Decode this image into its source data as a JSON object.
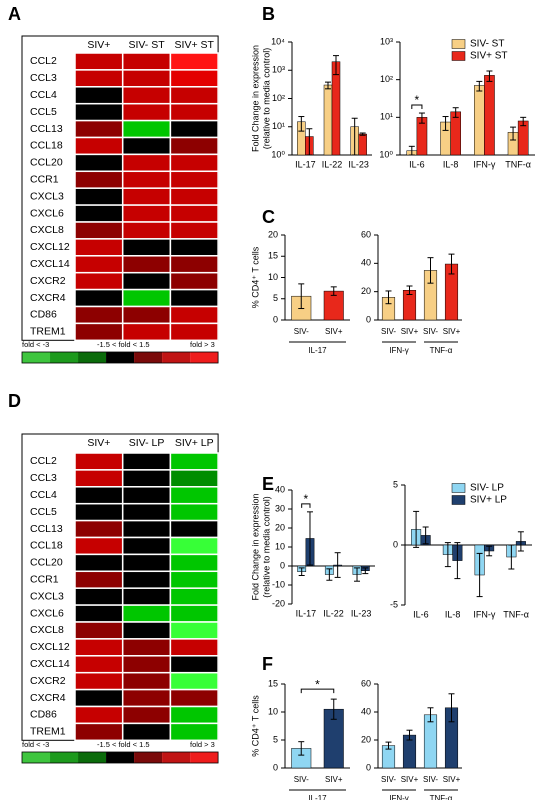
{
  "chart_data": [
    {
      "type": "heatmap",
      "panel": "A",
      "columns": [
        "SIV+",
        "SIV- ST",
        "SIV+ ST"
      ],
      "rows": [
        "CCL2",
        "CCL3",
        "CCL4",
        "CCL5",
        "CCL13",
        "CCL18",
        "CCL20",
        "CCR1",
        "CXCL3",
        "CXCL6",
        "CXCL8",
        "CXCL12",
        "CXCL14",
        "CXCR2",
        "CXCR4",
        "CD86",
        "TREM1"
      ],
      "values": [
        [
          3,
          3,
          4
        ],
        [
          3,
          3,
          3.5
        ],
        [
          0,
          3,
          3
        ],
        [
          0,
          3,
          3
        ],
        [
          2,
          -3,
          0
        ],
        [
          3,
          0,
          2
        ],
        [
          0,
          3,
          3
        ],
        [
          2,
          3,
          3
        ],
        [
          0,
          3,
          3
        ],
        [
          0,
          3,
          3
        ],
        [
          2,
          3,
          3
        ],
        [
          3,
          0,
          0
        ],
        [
          3,
          2,
          2
        ],
        [
          3,
          0,
          2
        ],
        [
          0,
          -3,
          0
        ],
        [
          2,
          2,
          3
        ],
        [
          2,
          3,
          3
        ]
      ],
      "legend_labels": [
        "fold < -3",
        "-1.5 < fold < 1.5",
        "fold > 3"
      ],
      "legend_colors": [
        "#3ec53e",
        "#1d9a1d",
        "#0b6b0b",
        "#000000",
        "#7a0a0a",
        "#c01414",
        "#ee1c1c"
      ]
    },
    {
      "type": "bar",
      "panel": "B",
      "ylabel": [
        "Fold Change in expression",
        "(relative to media control)"
      ],
      "categories": [
        "IL-17",
        "IL-22",
        "IL-23"
      ],
      "log_y": true,
      "ylim": [
        1,
        10000
      ],
      "yticks": [
        {
          "value": 1,
          "label": "10⁰"
        },
        {
          "value": 10,
          "label": "10¹"
        },
        {
          "value": 100,
          "label": "10²"
        },
        {
          "value": 1000,
          "label": "10³"
        },
        {
          "value": 10000,
          "label": "10⁴"
        }
      ],
      "series": [
        {
          "color": "#f7cf85",
          "values": [
            15,
            300,
            10
          ],
          "errors": [
            8,
            80,
            10
          ]
        },
        {
          "color": "#e8281b",
          "values": [
            4.5,
            2000,
            5.5
          ],
          "errors": [
            4,
            1300,
            0.5
          ]
        }
      ]
    },
    {
      "type": "bar",
      "categories": [
        "IL-6",
        "IL-8",
        "IFN-γ",
        "TNF-α"
      ],
      "log_y": true,
      "ylim": [
        1,
        1000
      ],
      "yticks": [
        {
          "value": 1,
          "label": "10⁰"
        },
        {
          "value": 10,
          "label": "10¹"
        },
        {
          "value": 100,
          "label": "10²"
        },
        {
          "value": 1000,
          "label": "10³"
        }
      ],
      "legend": "top-right",
      "series": [
        {
          "name": "SIV- ST",
          "color": "#f7cf85",
          "values": [
            1.3,
            7.5,
            70,
            4
          ],
          "errors": [
            0.4,
            3,
            20,
            1.5
          ]
        },
        {
          "name": "SIV+ ST",
          "color": "#e8281b",
          "values": [
            10,
            14,
            130,
            8
          ],
          "errors": [
            3,
            4,
            40,
            2
          ]
        }
      ],
      "annotations": [
        {
          "text": "*",
          "category": 0
        }
      ]
    },
    {
      "type": "bar",
      "panel": "C",
      "ylabel": [
        "% CD4⁺ T cells"
      ],
      "categories": [
        "SIV-",
        "SIV+"
      ],
      "values": [
        5.6,
        6.8
      ],
      "errors": [
        2.9,
        1
      ],
      "colors": [
        "#f7cf85",
        "#e8281b"
      ],
      "ylim": [
        0,
        20
      ],
      "yticks": [
        0,
        5,
        10,
        15,
        20
      ],
      "groups": [
        {
          "label": "IL-17",
          "categories": [
            0,
            1
          ]
        }
      ]
    },
    {
      "type": "bar",
      "categories": [
        "SIV-",
        "SIV+",
        "SIV-",
        "SIV+"
      ],
      "values": [
        16,
        21,
        35,
        39.5
      ],
      "errors": [
        4.5,
        3,
        9,
        7
      ],
      "colors": [
        "#f7cf85",
        "#e8281b",
        "#f7cf85",
        "#e8281b"
      ],
      "ylim": [
        0,
        60
      ],
      "yticks": [
        0,
        20,
        40,
        60
      ],
      "groups": [
        {
          "label": "IFN-γ",
          "categories": [
            0,
            1
          ]
        },
        {
          "label": "TNF-α",
          "categories": [
            2,
            3
          ]
        }
      ]
    },
    {
      "type": "heatmap",
      "panel": "D",
      "columns": [
        "SIV+",
        "SIV- LP",
        "SIV+ LP"
      ],
      "rows": [
        "CCL2",
        "CCL3",
        "CCL4",
        "CCL5",
        "CCL13",
        "CCL18",
        "CCL20",
        "CCR1",
        "CXCL3",
        "CXCL6",
        "CXCL8",
        "CXCL12",
        "CXCL14",
        "CXCR2",
        "CXCR4",
        "CD86",
        "TREM1"
      ],
      "values": [
        [
          3,
          0,
          -3
        ],
        [
          3,
          0,
          -2
        ],
        [
          0,
          0,
          -3
        ],
        [
          0,
          0,
          -3
        ],
        [
          2,
          0,
          0
        ],
        [
          3,
          0,
          -4
        ],
        [
          0,
          0,
          -3
        ],
        [
          2,
          0,
          -3
        ],
        [
          0,
          0,
          -3
        ],
        [
          0,
          -3,
          -3
        ],
        [
          2,
          0,
          -4
        ],
        [
          3,
          2,
          3
        ],
        [
          3,
          2,
          0
        ],
        [
          3,
          2,
          -4
        ],
        [
          0,
          2,
          2
        ],
        [
          3,
          2,
          -3
        ],
        [
          2,
          0,
          -3
        ]
      ],
      "legend_labels": [
        "fold < -3",
        "-1.5 < fold < 1.5",
        "fold > 3"
      ],
      "legend_colors": [
        "#3ec53e",
        "#1d9a1d",
        "#0b6b0b",
        "#000000",
        "#7a0a0a",
        "#c01414",
        "#ee1c1c"
      ]
    },
    {
      "type": "bar",
      "panel": "E",
      "ylabel": [
        "Fold Change in expression",
        "(relative to media control)"
      ],
      "categories": [
        "IL-17",
        "IL-22",
        "IL-23"
      ],
      "ylim": [
        -20,
        40
      ],
      "yticks": [
        -20,
        -10,
        0,
        10,
        20,
        30,
        40
      ],
      "series": [
        {
          "color": "#8fd6f2",
          "values": [
            -3,
            -4.5,
            -4.5
          ],
          "errors": [
            2,
            3,
            3.5
          ]
        },
        {
          "color": "#1f3f6e",
          "values": [
            14.5,
            0.5,
            -2.5
          ],
          "errors": [
            14,
            6.5,
            1.5
          ]
        }
      ],
      "annotations": [
        {
          "text": "*",
          "category": 0
        }
      ]
    },
    {
      "type": "bar",
      "categories": [
        "IL-6",
        "IL-8",
        "IFN-γ",
        "TNF-α"
      ],
      "ylim": [
        -5,
        5
      ],
      "yticks": [
        -5,
        0,
        5
      ],
      "legend": "top-right",
      "series": [
        {
          "name": "SIV- LP",
          "color": "#8fd6f2",
          "values": [
            1.3,
            -0.8,
            -2.5,
            -1
          ],
          "errors": [
            1.5,
            1,
            1.8,
            1
          ]
        },
        {
          "name": "SIV+ LP",
          "color": "#1f3f6e",
          "values": [
            0.8,
            -1.3,
            -0.5,
            0.3
          ],
          "errors": [
            0.7,
            1.5,
            0.4,
            0.8
          ]
        }
      ]
    },
    {
      "type": "bar",
      "panel": "F",
      "ylabel": [
        "% CD4⁺ T cells"
      ],
      "categories": [
        "SIV-",
        "SIV+"
      ],
      "values": [
        3.5,
        10.5
      ],
      "errors": [
        1.2,
        1.8
      ],
      "colors": [
        "#8fd6f2",
        "#1f3f6e"
      ],
      "ylim": [
        0,
        15
      ],
      "yticks": [
        0,
        5,
        10,
        15
      ],
      "groups": [
        {
          "label": "IL-17",
          "categories": [
            0,
            1
          ]
        }
      ],
      "annotations": [
        {
          "text": "*",
          "categories": [
            0,
            1
          ]
        }
      ]
    },
    {
      "type": "bar",
      "categories": [
        "SIV-",
        "SIV+",
        "SIV-",
        "SIV+"
      ],
      "values": [
        16,
        23.5,
        38,
        43
      ],
      "errors": [
        2.5,
        3.5,
        5,
        10
      ],
      "colors": [
        "#8fd6f2",
        "#1f3f6e",
        "#8fd6f2",
        "#1f3f6e"
      ],
      "ylim": [
        0,
        60
      ],
      "yticks": [
        0,
        20,
        40,
        60
      ],
      "groups": [
        {
          "label": "IFN-γ",
          "categories": [
            0,
            1
          ]
        },
        {
          "label": "TNF-α",
          "categories": [
            2,
            3
          ]
        }
      ]
    }
  ]
}
